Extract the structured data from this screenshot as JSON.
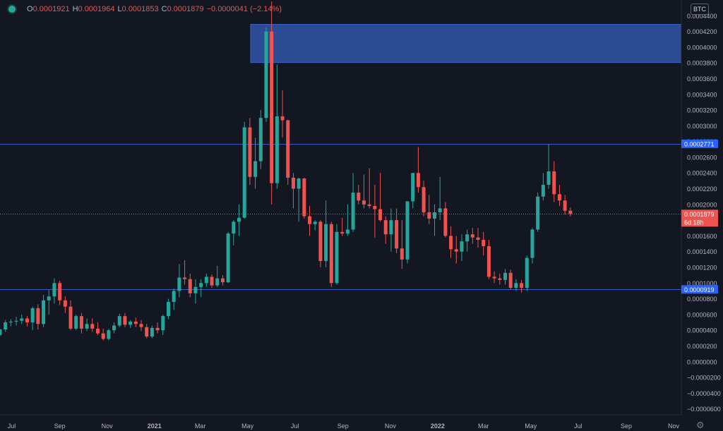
{
  "ohlc": {
    "open_label": "O",
    "open": "0.0001921",
    "high_label": "H",
    "high": "0.0001964",
    "low_label": "L",
    "low": "0.0001853",
    "close_label": "C",
    "close": "0.0001879",
    "change": "−0.0000041 (−2.14%)"
  },
  "currency_badge": "BTC",
  "colors": {
    "up": "#26a69a",
    "down": "#ef5350",
    "zone": "#2b4b94",
    "level": "#2962ff",
    "bg": "#131722"
  },
  "icons": {
    "settings": "gear-icon",
    "status": "status-dot-icon"
  },
  "chart_data": {
    "type": "candlestick",
    "title": "",
    "xlabel": "",
    "ylabel": "",
    "ylim": [
      -6.75e-05,
      0.00046
    ],
    "y_ticks": [
      "0.0004400",
      "0.0004200",
      "0.0004000",
      "0.0003800",
      "0.0003600",
      "0.0003400",
      "0.0003200",
      "0.0003000",
      "0.0002800",
      "0.0002600",
      "0.0002400",
      "0.0002200",
      "0.0002000",
      "0.0001800",
      "0.0001600",
      "0.0001400",
      "0.0001200",
      "0.0001000",
      "0.0000800",
      "0.0000600",
      "0.0000400",
      "0.0000200",
      "0.0000000",
      "−0.0000200",
      "−0.0000400",
      "−0.0000600"
    ],
    "x_ticks": [
      {
        "label": "Jul",
        "date": "2020-07-01"
      },
      {
        "label": "Sep",
        "date": "2020-09-01"
      },
      {
        "label": "Nov",
        "date": "2020-11-01"
      },
      {
        "label": "2021",
        "date": "2021-01-01"
      },
      {
        "label": "Mar",
        "date": "2021-03-01"
      },
      {
        "label": "May",
        "date": "2021-05-01"
      },
      {
        "label": "Jul",
        "date": "2021-07-01"
      },
      {
        "label": "Sep",
        "date": "2021-09-01"
      },
      {
        "label": "Nov",
        "date": "2021-11-01"
      },
      {
        "label": "2022",
        "date": "2022-01-01"
      },
      {
        "label": "Mar",
        "date": "2022-03-01"
      },
      {
        "label": "May",
        "date": "2022-05-01"
      },
      {
        "label": "Jul",
        "date": "2022-07-01"
      },
      {
        "label": "Sep",
        "date": "2022-09-01"
      },
      {
        "label": "Nov",
        "date": "2022-11-01"
      }
    ],
    "x_range": [
      "2020-06-16",
      "2022-11-11"
    ],
    "grid": false,
    "resistance_zone": [
      0.0003805,
      0.000429
    ],
    "levels": [
      {
        "value": 0.0002771,
        "label": "0.0002771"
      },
      {
        "value": 9.19e-05,
        "label": "0.0000919"
      }
    ],
    "current_price": {
      "value": 0.0001879,
      "label": "0.0001879",
      "countdown": "6d 18h"
    },
    "candles": [
      [
        "2020-06-16",
        3.4e-05,
        4.2e-05,
        3.3e-05,
        4.1e-05
      ],
      [
        "2020-06-23",
        4.1e-05,
        5.3e-05,
        3.8e-05,
        5e-05
      ],
      [
        "2020-06-30",
        5e-05,
        5.4e-05,
        4.5e-05,
        5.1e-05
      ],
      [
        "2020-07-07",
        5.1e-05,
        5.7e-05,
        4.6e-05,
        5.2e-05
      ],
      [
        "2020-07-14",
        5.2e-05,
        6e-05,
        4.8e-05,
        5.5e-05
      ],
      [
        "2020-07-21",
        5.5e-05,
        5.8e-05,
        4.5e-05,
        5e-05
      ],
      [
        "2020-07-28",
        5e-05,
        7e-05,
        4e-05,
        6.8e-05
      ],
      [
        "2020-08-04",
        6.8e-05,
        7.3e-05,
        4.1e-05,
        4.8e-05
      ],
      [
        "2020-08-11",
        4.8e-05,
        8.5e-05,
        4.4e-05,
        7.8e-05
      ],
      [
        "2020-08-18",
        7.8e-05,
        9.1e-05,
        6e-05,
        8.3e-05
      ],
      [
        "2020-08-25",
        8.3e-05,
        0.000106,
        7.4e-05,
        0.0001
      ],
      [
        "2020-09-01",
        0.0001,
        0.000103,
        7.2e-05,
        7.8e-05
      ],
      [
        "2020-09-08",
        7.8e-05,
        8.3e-05,
        6.2e-05,
        7e-05
      ],
      [
        "2020-09-15",
        7e-05,
        7.8e-05,
        4e-05,
        4.2e-05
      ],
      [
        "2020-09-22",
        4.2e-05,
        6e-05,
        4e-05,
        5.8e-05
      ],
      [
        "2020-09-29",
        5.8e-05,
        6.2e-05,
        3.6e-05,
        4.2e-05
      ],
      [
        "2020-10-06",
        4.2e-05,
        5.5e-05,
        3.9e-05,
        4.8e-05
      ],
      [
        "2020-10-13",
        4.8e-05,
        5.5e-05,
        3.8e-05,
        4.2e-05
      ],
      [
        "2020-10-20",
        4.2e-05,
        5e-05,
        3.4e-05,
        3.6e-05
      ],
      [
        "2020-10-27",
        3.6e-05,
        4.2e-05,
        2.7e-05,
        2.9e-05
      ],
      [
        "2020-11-03",
        2.9e-05,
        4.2e-05,
        2.7e-05,
        4e-05
      ],
      [
        "2020-11-10",
        4e-05,
        5e-05,
        3.6e-05,
        4.6e-05
      ],
      [
        "2020-11-17",
        4.6e-05,
        6.1e-05,
        4.4e-05,
        5.8e-05
      ],
      [
        "2020-11-24",
        5.8e-05,
        6.2e-05,
        4.4e-05,
        4.7e-05
      ],
      [
        "2020-12-01",
        4.7e-05,
        5.3e-05,
        4.3e-05,
        5.1e-05
      ],
      [
        "2020-12-08",
        5.1e-05,
        5.6e-05,
        4.4e-05,
        4.8e-05
      ],
      [
        "2020-12-15",
        4.8e-05,
        5.3e-05,
        3.9e-05,
        4.4e-05
      ],
      [
        "2020-12-22",
        4.4e-05,
        4.8e-05,
        3e-05,
        3.2e-05
      ],
      [
        "2020-12-29",
        3.2e-05,
        4.6e-05,
        3e-05,
        4.3e-05
      ],
      [
        "2021-01-05",
        4.3e-05,
        5e-05,
        3.6e-05,
        4e-05
      ],
      [
        "2021-01-12",
        4e-05,
        6e-05,
        3.4e-05,
        5.8e-05
      ],
      [
        "2021-01-19",
        5.8e-05,
        8e-05,
        5.4e-05,
        7.6e-05
      ],
      [
        "2021-01-26",
        7.6e-05,
        9.3e-05,
        6.6e-05,
        9e-05
      ],
      [
        "2021-02-02",
        9e-05,
        0.000124,
        8.2e-05,
        0.000107
      ],
      [
        "2021-02-09",
        0.000107,
        0.000129,
        9.8e-05,
        0.000105
      ],
      [
        "2021-02-16",
        0.000105,
        0.000112,
        8.2e-05,
        8.7e-05
      ],
      [
        "2021-02-23",
        8.7e-05,
        0.000105,
        7.4e-05,
        9.5e-05
      ],
      [
        "2021-03-02",
        9.5e-05,
        0.000105,
        8.2e-05,
        0.0001
      ],
      [
        "2021-03-09",
        0.0001,
        0.000112,
        9.5e-05,
        0.000108
      ],
      [
        "2021-03-16",
        0.000108,
        0.000111,
        9.4e-05,
        9.7e-05
      ],
      [
        "2021-03-23",
        9.7e-05,
        0.000122,
        9.5e-05,
        0.000106
      ],
      [
        "2021-03-30",
        0.000106,
        0.00011,
        9.7e-05,
        0.000101
      ],
      [
        "2021-04-06",
        0.000101,
        0.000165,
        0.0001,
        0.000163
      ],
      [
        "2021-04-13",
        0.000163,
        0.00018,
        0.000148,
        0.000178
      ],
      [
        "2021-04-20",
        0.000178,
        0.0002,
        0.00016,
        0.000183
      ],
      [
        "2021-04-27",
        0.000183,
        0.000305,
        0.000182,
        0.000298
      ],
      [
        "2021-05-04",
        0.000298,
        0.00031,
        0.000225,
        0.000235
      ],
      [
        "2021-05-11",
        0.000235,
        0.000285,
        0.00022,
        0.000255
      ],
      [
        "2021-05-18",
        0.000255,
        0.00032,
        0.000245,
        0.00031
      ],
      [
        "2021-05-25",
        0.00031,
        0.000425,
        0.000305,
        0.00042
      ],
      [
        "2021-06-01",
        0.00042,
        0.000458,
        0.0002,
        0.000227
      ],
      [
        "2021-06-08",
        0.000227,
        0.000378,
        0.00022,
        0.000312
      ],
      [
        "2021-06-15",
        0.000312,
        0.000345,
        0.000285,
        0.000307
      ],
      [
        "2021-06-22",
        0.000307,
        0.000308,
        0.000225,
        0.000234
      ],
      [
        "2021-06-29",
        0.000234,
        0.00024,
        0.000195,
        0.00022
      ],
      [
        "2021-07-06",
        0.00022,
        0.000234,
        0.000178,
        0.000233
      ],
      [
        "2021-07-13",
        0.000233,
        0.000234,
        0.000182,
        0.000185
      ],
      [
        "2021-07-20",
        0.000185,
        0.000198,
        0.00016,
        0.000175
      ],
      [
        "2021-07-27",
        0.000175,
        0.00018,
        0.000167,
        0.000178
      ],
      [
        "2021-08-03",
        0.000178,
        0.00018,
        0.00012,
        0.000128
      ],
      [
        "2021-08-10",
        0.000128,
        0.000205,
        0.00012,
        0.000175
      ],
      [
        "2021-08-17",
        0.000175,
        0.000178,
        9.5e-05,
        0.0001
      ],
      [
        "2021-08-24",
        0.0001,
        0.000175,
        9.8e-05,
        0.000165
      ],
      [
        "2021-08-31",
        0.000165,
        0.000183,
        0.00016,
        0.000163
      ],
      [
        "2021-09-07",
        0.000163,
        0.0002,
        0.00016,
        0.000168
      ],
      [
        "2021-09-14",
        0.000168,
        0.00024,
        0.000165,
        0.000215
      ],
      [
        "2021-09-21",
        0.000215,
        0.000225,
        0.0002,
        0.000205
      ],
      [
        "2021-09-28",
        0.000205,
        0.000238,
        0.000195,
        0.0002
      ],
      [
        "2021-10-05",
        0.0002,
        0.000246,
        0.000195,
        0.000198
      ],
      [
        "2021-10-12",
        0.000198,
        0.000225,
        0.000158,
        0.000194
      ],
      [
        "2021-10-19",
        0.000194,
        0.00024,
        0.000178,
        0.00018
      ],
      [
        "2021-10-26",
        0.00018,
        0.000185,
        0.00015,
        0.000162
      ],
      [
        "2021-11-02",
        0.000162,
        0.000195,
        0.00014,
        0.00018
      ],
      [
        "2021-11-09",
        0.00018,
        0.000195,
        0.000138,
        0.000144
      ],
      [
        "2021-11-16",
        0.000144,
        0.00018,
        0.000118,
        0.00013
      ],
      [
        "2021-11-23",
        0.00013,
        0.000203,
        0.000125,
        0.000204
      ],
      [
        "2021-11-30",
        0.000204,
        0.00024,
        0.000195,
        0.00024
      ],
      [
        "2021-12-07",
        0.00024,
        0.000273,
        0.000215,
        0.000222
      ],
      [
        "2021-12-14",
        0.000222,
        0.00023,
        0.000185,
        0.00019
      ],
      [
        "2021-12-21",
        0.00019,
        0.000212,
        0.000175,
        0.000182
      ],
      [
        "2021-12-28",
        0.000182,
        0.0002,
        0.00016,
        0.00019
      ],
      [
        "2022-01-04",
        0.00019,
        0.000235,
        0.00018,
        0.000195
      ],
      [
        "2022-01-11",
        0.000195,
        0.000203,
        0.000158,
        0.00016
      ],
      [
        "2022-01-18",
        0.00016,
        0.000172,
        0.000132,
        0.000143
      ],
      [
        "2022-01-25",
        0.000143,
        0.00016,
        0.000125,
        0.00014
      ],
      [
        "2022-02-01",
        0.00014,
        0.000162,
        0.000128,
        0.000153
      ],
      [
        "2022-02-08",
        0.000153,
        0.000168,
        0.00014,
        0.000162
      ],
      [
        "2022-02-15",
        0.000162,
        0.00017,
        0.00015,
        0.000158
      ],
      [
        "2022-02-22",
        0.000158,
        0.00017,
        0.000145,
        0.000155
      ],
      [
        "2022-03-01",
        0.000155,
        0.000165,
        0.000135,
        0.000147
      ],
      [
        "2022-03-08",
        0.000147,
        0.000155,
        0.000105,
        0.000108
      ],
      [
        "2022-03-15",
        0.000108,
        0.000115,
        0.0001,
        0.000106
      ],
      [
        "2022-03-22",
        0.000106,
        0.000112,
        9.8e-05,
        0.000104
      ],
      [
        "2022-03-29",
        0.000104,
        0.000118,
        9.8e-05,
        0.000113
      ],
      [
        "2022-04-05",
        0.000113,
        0.000117,
        9.2e-05,
        9.4e-05
      ],
      [
        "2022-04-12",
        9.4e-05,
        0.000105,
        9e-05,
        0.0001
      ],
      [
        "2022-04-19",
        0.0001,
        0.000104,
        8.8e-05,
        9.4e-05
      ],
      [
        "2022-04-26",
        9.4e-05,
        0.000135,
        9e-05,
        0.000132
      ],
      [
        "2022-05-03",
        0.000132,
        0.00017,
        0.000125,
        0.000168
      ],
      [
        "2022-05-10",
        0.000168,
        0.000215,
        0.000165,
        0.00021
      ],
      [
        "2022-05-17",
        0.00021,
        0.00024,
        0.000205,
        0.000225
      ],
      [
        "2022-05-24",
        0.000225,
        0.000277,
        0.00022,
        0.000242
      ],
      [
        "2022-05-31",
        0.000242,
        0.000255,
        0.000203,
        0.000213
      ],
      [
        "2022-06-07",
        0.000213,
        0.000225,
        0.000198,
        0.000205
      ],
      [
        "2022-06-14",
        0.000205,
        0.000212,
        0.000187,
        0.000192
      ],
      [
        "2022-06-21",
        0.000192,
        0.000196,
        0.000185,
        0.000188
      ]
    ]
  }
}
